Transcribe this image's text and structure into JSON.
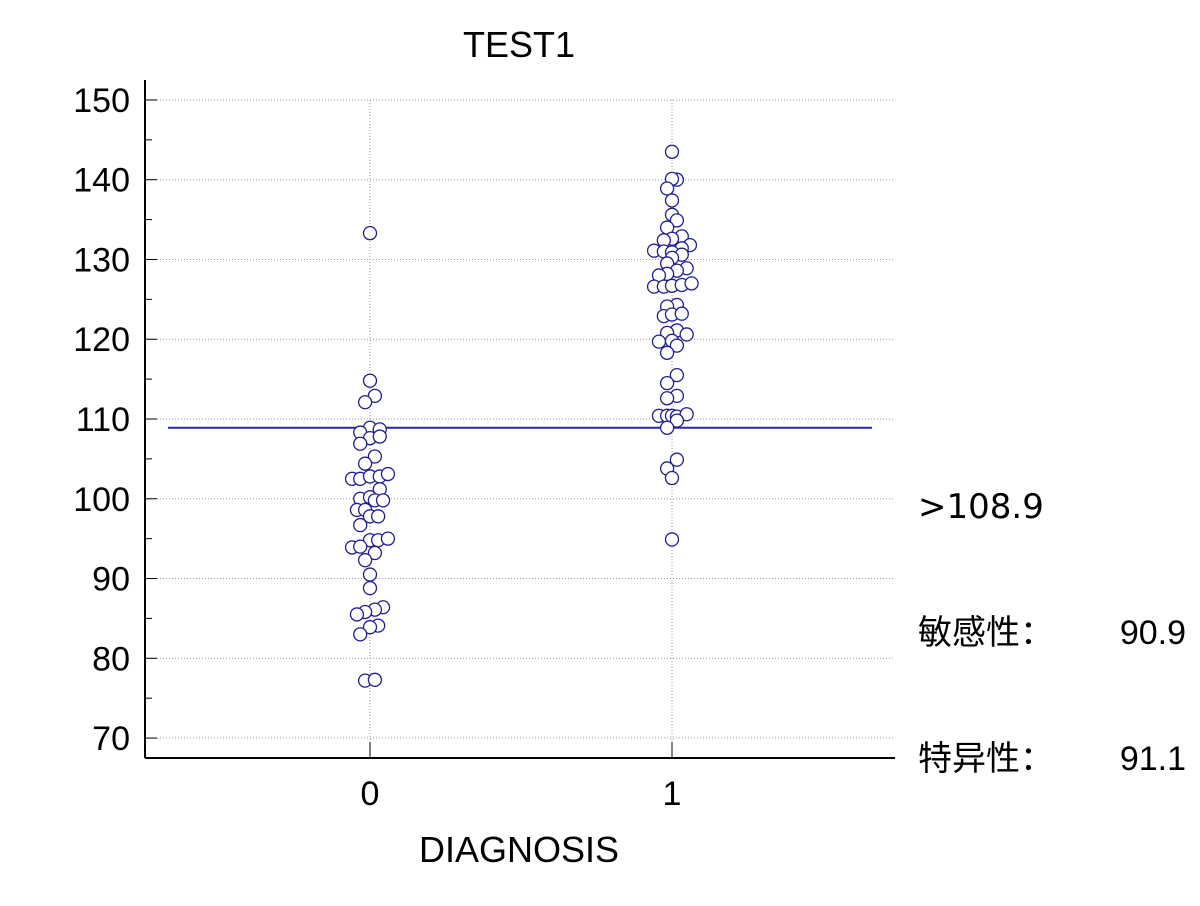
{
  "chart_data": {
    "type": "scatter",
    "title": "TEST1",
    "xlabel": "DIAGNOSIS",
    "ylabel": "",
    "categories": [
      "0",
      "1"
    ],
    "ylim": [
      67.5,
      152.5
    ],
    "yticks": [
      70,
      80,
      90,
      100,
      110,
      120,
      130,
      140,
      150
    ],
    "grid": true,
    "cutoff": {
      "value": 108.9,
      "label": ">108.9"
    },
    "stats": [
      {
        "label": "敏感性：",
        "value": "90.9"
      },
      {
        "label": "特异性：",
        "value": "91.1"
      }
    ],
    "marker_color": "#1f1f8f",
    "line_color": "#2b2b9a",
    "series": [
      {
        "category": "0",
        "points": [
          [
            0.0,
            133.3
          ],
          [
            0.0,
            114.8
          ],
          [
            0.03,
            112.9
          ],
          [
            -0.03,
            112.1
          ],
          [
            0.0,
            108.9
          ],
          [
            -0.06,
            108.3
          ],
          [
            0.06,
            108.7
          ],
          [
            0.0,
            107.6
          ],
          [
            0.06,
            107.8
          ],
          [
            -0.06,
            106.9
          ],
          [
            0.03,
            105.3
          ],
          [
            -0.03,
            104.4
          ],
          [
            -0.11,
            102.5
          ],
          [
            -0.06,
            102.5
          ],
          [
            0.0,
            102.8
          ],
          [
            0.06,
            102.8
          ],
          [
            0.11,
            103.1
          ],
          [
            0.06,
            101.2
          ],
          [
            -0.06,
            100.0
          ],
          [
            0.0,
            100.2
          ],
          [
            0.03,
            99.8
          ],
          [
            0.08,
            99.8
          ],
          [
            -0.08,
            98.6
          ],
          [
            -0.03,
            98.6
          ],
          [
            0.0,
            97.8
          ],
          [
            0.05,
            97.8
          ],
          [
            -0.06,
            96.7
          ],
          [
            0.0,
            94.8
          ],
          [
            0.05,
            94.8
          ],
          [
            0.11,
            95.0
          ],
          [
            -0.11,
            93.9
          ],
          [
            -0.06,
            94.0
          ],
          [
            0.03,
            93.2
          ],
          [
            -0.03,
            92.3
          ],
          [
            0.0,
            90.5
          ],
          [
            0.0,
            88.8
          ],
          [
            0.08,
            86.4
          ],
          [
            0.03,
            86.1
          ],
          [
            -0.03,
            85.8
          ],
          [
            -0.08,
            85.5
          ],
          [
            0.05,
            84.1
          ],
          [
            0.0,
            83.9
          ],
          [
            -0.06,
            83.0
          ],
          [
            -0.03,
            77.2
          ],
          [
            0.03,
            77.3
          ]
        ]
      },
      {
        "category": "1",
        "points": [
          [
            0.0,
            143.5
          ],
          [
            0.03,
            140.0
          ],
          [
            0.0,
            140.1
          ],
          [
            -0.03,
            138.9
          ],
          [
            0.0,
            137.4
          ],
          [
            0.0,
            135.6
          ],
          [
            0.03,
            134.9
          ],
          [
            -0.03,
            134.0
          ],
          [
            0.06,
            132.9
          ],
          [
            0.0,
            132.6
          ],
          [
            -0.05,
            132.4
          ],
          [
            0.11,
            131.8
          ],
          [
            -0.11,
            131.1
          ],
          [
            0.06,
            131.4
          ],
          [
            -0.05,
            131.0
          ],
          [
            0.0,
            130.9
          ],
          [
            0.06,
            130.6
          ],
          [
            0.0,
            130.2
          ],
          [
            -0.03,
            129.5
          ],
          [
            0.09,
            128.9
          ],
          [
            0.03,
            128.6
          ],
          [
            -0.03,
            128.2
          ],
          [
            -0.08,
            128.0
          ],
          [
            -0.11,
            126.6
          ],
          [
            -0.05,
            126.6
          ],
          [
            0.0,
            126.7
          ],
          [
            0.06,
            126.8
          ],
          [
            0.12,
            127.0
          ],
          [
            0.03,
            124.3
          ],
          [
            -0.03,
            124.1
          ],
          [
            -0.05,
            122.9
          ],
          [
            0.0,
            123.1
          ],
          [
            0.06,
            123.2
          ],
          [
            0.03,
            121.1
          ],
          [
            -0.03,
            120.8
          ],
          [
            0.09,
            120.6
          ],
          [
            -0.08,
            119.7
          ],
          [
            0.0,
            119.8
          ],
          [
            0.03,
            119.2
          ],
          [
            -0.03,
            118.3
          ],
          [
            0.03,
            115.5
          ],
          [
            -0.03,
            114.5
          ],
          [
            0.03,
            112.9
          ],
          [
            -0.03,
            112.6
          ],
          [
            -0.08,
            110.4
          ],
          [
            -0.03,
            110.4
          ],
          [
            0.0,
            110.4
          ],
          [
            0.03,
            110.3
          ],
          [
            0.09,
            110.6
          ],
          [
            0.03,
            109.8
          ],
          [
            -0.03,
            108.9
          ],
          [
            0.03,
            104.9
          ],
          [
            -0.03,
            103.8
          ],
          [
            0.0,
            102.6
          ],
          [
            0.0,
            94.9
          ]
        ]
      }
    ]
  }
}
